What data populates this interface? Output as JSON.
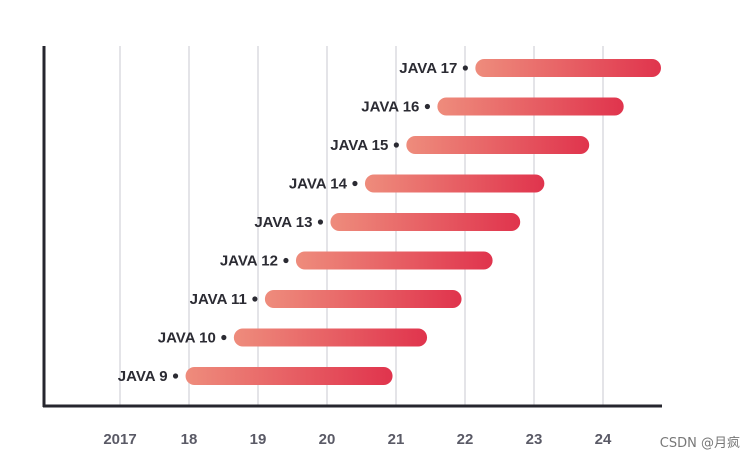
{
  "chart_data": {
    "type": "bar",
    "orientation": "horizontal-range",
    "x_tick_labels": [
      "2017",
      "18",
      "19",
      "20",
      "21",
      "22",
      "23",
      "24"
    ],
    "x_tick_years": [
      2017,
      2018,
      2019,
      2020,
      2021,
      2022,
      2023,
      2024
    ],
    "xlim": [
      2016.1,
      2024.9
    ],
    "grid": true,
    "bar_colors": {
      "start": "#ee8c7c",
      "end": "#e0344d"
    },
    "series": [
      {
        "label": "JAVA 9",
        "start": 2017.95,
        "end": 2020.95
      },
      {
        "label": "JAVA 10",
        "start": 2018.65,
        "end": 2021.45
      },
      {
        "label": "JAVA 11",
        "start": 2019.1,
        "end": 2021.95
      },
      {
        "label": "JAVA 12",
        "start": 2019.55,
        "end": 2022.4
      },
      {
        "label": "JAVA 13",
        "start": 2020.05,
        "end": 2022.8
      },
      {
        "label": "JAVA 14",
        "start": 2020.55,
        "end": 2023.15
      },
      {
        "label": "JAVA 15",
        "start": 2021.15,
        "end": 2023.8
      },
      {
        "label": "JAVA 16",
        "start": 2021.6,
        "end": 2024.3
      },
      {
        "label": "JAVA 17",
        "start": 2022.15,
        "end": 2024.9
      }
    ]
  },
  "watermark": "CSDN @月疯"
}
